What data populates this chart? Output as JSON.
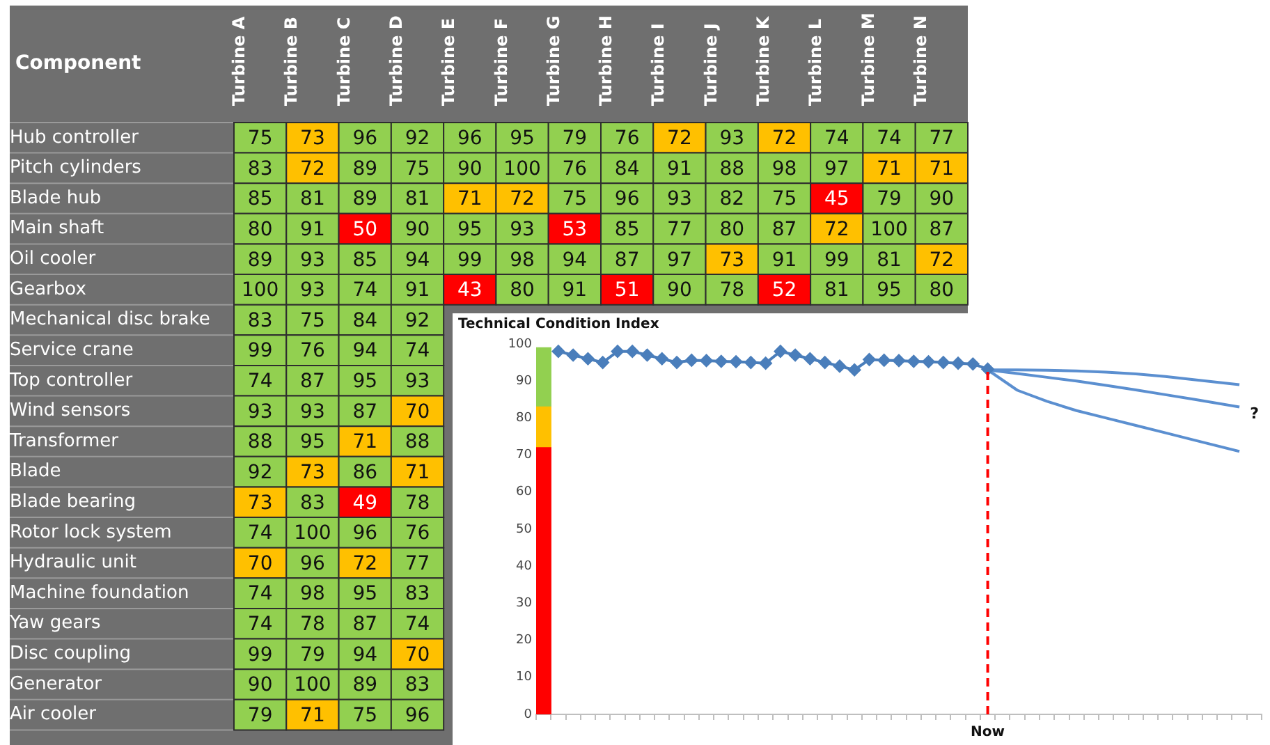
{
  "chart_data": [
    {
      "type": "heatmap",
      "ylabel": "Component",
      "data_labels": true,
      "categories": [
        "Turbine A",
        "Turbine B",
        "Turbine C",
        "Turbine D",
        "Turbine E",
        "Turbine F",
        "Turbine G",
        "Turbine H",
        "Turbine I",
        "Turbine J",
        "Turbine K",
        "Turbine L",
        "Turbine M",
        "Turbine N"
      ],
      "y_categories": [
        "Hub controller",
        "Pitch cylinders",
        "Blade hub",
        "Main shaft",
        "Oil cooler",
        "Gearbox",
        "Mechanical disc brake",
        "Service crane",
        "Top controller",
        "Wind sensors",
        "Transformer",
        "Blade",
        "Blade bearing",
        "Rotor lock system",
        "Hydraulic unit",
        "Machine foundation",
        "Yaw gears",
        "Disc coupling",
        "Generator",
        "Air cooler"
      ],
      "cells": [
        [
          75,
          73,
          96,
          92,
          96,
          95,
          79,
          76,
          72,
          93,
          72,
          74,
          74,
          77
        ],
        [
          83,
          72,
          89,
          75,
          90,
          100,
          76,
          84,
          91,
          88,
          98,
          97,
          71,
          71
        ],
        [
          85,
          81,
          89,
          81,
          71,
          72,
          75,
          96,
          93,
          82,
          75,
          45,
          79,
          90
        ],
        [
          80,
          91,
          50,
          90,
          95,
          93,
          53,
          85,
          77,
          80,
          87,
          72,
          100,
          87
        ],
        [
          89,
          93,
          85,
          94,
          99,
          98,
          94,
          87,
          97,
          73,
          91,
          99,
          81,
          72
        ],
        [
          100,
          93,
          74,
          91,
          43,
          80,
          91,
          51,
          90,
          78,
          52,
          81,
          95,
          80
        ],
        [
          83,
          75,
          84,
          92,
          null,
          null,
          null,
          null,
          null,
          null,
          null,
          null,
          null,
          null
        ],
        [
          99,
          76,
          94,
          74,
          null,
          null,
          null,
          null,
          null,
          null,
          null,
          null,
          null,
          null
        ],
        [
          74,
          87,
          95,
          93,
          null,
          null,
          null,
          null,
          null,
          null,
          null,
          null,
          null,
          null
        ],
        [
          93,
          93,
          87,
          70,
          null,
          null,
          null,
          null,
          null,
          null,
          null,
          null,
          null,
          null
        ],
        [
          88,
          95,
          71,
          88,
          null,
          null,
          null,
          null,
          null,
          null,
          null,
          null,
          null,
          null
        ],
        [
          92,
          73,
          86,
          71,
          null,
          null,
          null,
          null,
          null,
          null,
          null,
          null,
          null,
          null
        ],
        [
          73,
          83,
          49,
          78,
          null,
          null,
          null,
          null,
          null,
          null,
          null,
          null,
          null,
          null
        ],
        [
          74,
          100,
          96,
          76,
          null,
          null,
          null,
          null,
          null,
          null,
          null,
          null,
          null,
          null
        ],
        [
          70,
          96,
          72,
          77,
          null,
          null,
          null,
          null,
          null,
          null,
          null,
          null,
          null,
          null
        ],
        [
          74,
          98,
          95,
          83,
          null,
          null,
          null,
          null,
          null,
          null,
          null,
          null,
          null,
          null
        ],
        [
          74,
          78,
          87,
          74,
          null,
          null,
          null,
          null,
          null,
          null,
          null,
          null,
          null,
          null
        ],
        [
          99,
          79,
          94,
          70,
          null,
          null,
          null,
          null,
          null,
          null,
          null,
          null,
          null,
          null
        ],
        [
          90,
          100,
          89,
          83,
          null,
          null,
          null,
          null,
          null,
          null,
          null,
          null,
          null,
          null
        ],
        [
          79,
          71,
          75,
          96,
          null,
          null,
          null,
          null,
          null,
          null,
          null,
          null,
          null,
          null
        ]
      ],
      "colors": [
        [
          "#92d050",
          "#ffc000",
          "#92d050",
          "#92d050",
          "#92d050",
          "#92d050",
          "#92d050",
          "#92d050",
          "#ffc000",
          "#92d050",
          "#ffc000",
          "#92d050",
          "#92d050",
          "#92d050"
        ],
        [
          "#92d050",
          "#ffc000",
          "#92d050",
          "#92d050",
          "#92d050",
          "#92d050",
          "#92d050",
          "#92d050",
          "#92d050",
          "#92d050",
          "#92d050",
          "#92d050",
          "#ffc000",
          "#ffc000"
        ],
        [
          "#92d050",
          "#92d050",
          "#92d050",
          "#92d050",
          "#ffc000",
          "#ffc000",
          "#92d050",
          "#92d050",
          "#92d050",
          "#92d050",
          "#92d050",
          "#ff0000",
          "#92d050",
          "#92d050"
        ],
        [
          "#92d050",
          "#92d050",
          "#ff0000",
          "#92d050",
          "#92d050",
          "#92d050",
          "#ff0000",
          "#92d050",
          "#92d050",
          "#92d050",
          "#92d050",
          "#ffc000",
          "#92d050",
          "#92d050"
        ],
        [
          "#92d050",
          "#92d050",
          "#92d050",
          "#92d050",
          "#92d050",
          "#92d050",
          "#92d050",
          "#92d050",
          "#92d050",
          "#ffc000",
          "#92d050",
          "#92d050",
          "#92d050",
          "#ffc000"
        ],
        [
          "#92d050",
          "#92d050",
          "#92d050",
          "#92d050",
          "#ff0000",
          "#92d050",
          "#92d050",
          "#ff0000",
          "#92d050",
          "#92d050",
          "#ff0000",
          "#92d050",
          "#92d050",
          "#92d050"
        ],
        [
          "#92d050",
          "#92d050",
          "#92d050",
          "#92d050",
          null,
          null,
          null,
          null,
          null,
          null,
          null,
          null,
          null,
          null
        ],
        [
          "#92d050",
          "#92d050",
          "#92d050",
          "#92d050",
          null,
          null,
          null,
          null,
          null,
          null,
          null,
          null,
          null,
          null
        ],
        [
          "#92d050",
          "#92d050",
          "#92d050",
          "#92d050",
          null,
          null,
          null,
          null,
          null,
          null,
          null,
          null,
          null,
          null
        ],
        [
          "#92d050",
          "#92d050",
          "#92d050",
          "#ffc000",
          null,
          null,
          null,
          null,
          null,
          null,
          null,
          null,
          null,
          null
        ],
        [
          "#92d050",
          "#92d050",
          "#ffc000",
          "#92d050",
          null,
          null,
          null,
          null,
          null,
          null,
          null,
          null,
          null,
          null
        ],
        [
          "#92d050",
          "#ffc000",
          "#92d050",
          "#ffc000",
          null,
          null,
          null,
          null,
          null,
          null,
          null,
          null,
          null,
          null
        ],
        [
          "#ffc000",
          "#92d050",
          "#ff0000",
          "#92d050",
          null,
          null,
          null,
          null,
          null,
          null,
          null,
          null,
          null,
          null
        ],
        [
          "#92d050",
          "#92d050",
          "#92d050",
          "#92d050",
          null,
          null,
          null,
          null,
          null,
          null,
          null,
          null,
          null,
          null
        ],
        [
          "#ffc000",
          "#92d050",
          "#ffc000",
          "#92d050",
          null,
          null,
          null,
          null,
          null,
          null,
          null,
          null,
          null,
          null
        ],
        [
          "#92d050",
          "#92d050",
          "#92d050",
          "#92d050",
          null,
          null,
          null,
          null,
          null,
          null,
          null,
          null,
          null,
          null
        ],
        [
          "#92d050",
          "#92d050",
          "#92d050",
          "#92d050",
          null,
          null,
          null,
          null,
          null,
          null,
          null,
          null,
          null,
          null
        ],
        [
          "#92d050",
          "#92d050",
          "#92d050",
          "#ffc000",
          null,
          null,
          null,
          null,
          null,
          null,
          null,
          null,
          null,
          null
        ],
        [
          "#92d050",
          "#92d050",
          "#92d050",
          "#92d050",
          null,
          null,
          null,
          null,
          null,
          null,
          null,
          null,
          null,
          null
        ],
        [
          "#92d050",
          "#ffc000",
          "#92d050",
          "#92d050",
          null,
          null,
          null,
          null,
          null,
          null,
          null,
          null,
          null,
          null
        ]
      ]
    },
    {
      "type": "line",
      "title": "Technical Condition Index",
      "grid": false,
      "legend": false,
      "stacked": true,
      "categories": [
        null,
        null,
        null,
        null,
        null,
        null,
        null,
        null,
        null,
        null,
        null,
        null,
        null,
        null,
        null,
        null,
        null,
        null,
        null,
        null,
        null,
        null,
        null,
        null,
        null,
        null,
        null,
        null,
        null,
        null,
        "Now",
        null,
        null,
        null,
        null,
        null,
        null,
        null,
        null,
        null,
        null,
        null,
        null,
        null,
        null,
        null,
        null,
        null,
        null
      ],
      "ylim": [
        0,
        100
      ],
      "yticks": [
        0,
        10,
        20,
        30,
        40,
        50,
        60,
        70,
        80,
        90,
        100
      ],
      "series": [
        {
          "type": "bar",
          "color": "#ff0000",
          "values": [
            72,
            null,
            null,
            null,
            null,
            null,
            null,
            null,
            null,
            null,
            null,
            null,
            null,
            null,
            null,
            null,
            null,
            null,
            null,
            null,
            null,
            null,
            null,
            null,
            null,
            null,
            null,
            null,
            null,
            null,
            null,
            null,
            null,
            null,
            null,
            null,
            null,
            null,
            null,
            null,
            null,
            null,
            null,
            null,
            null,
            null,
            null,
            null,
            null
          ]
        },
        {
          "type": "bar",
          "color": "#ffc000",
          "values": [
            11,
            null,
            null,
            null,
            null,
            null,
            null,
            null,
            null,
            null,
            null,
            null,
            null,
            null,
            null,
            null,
            null,
            null,
            null,
            null,
            null,
            null,
            null,
            null,
            null,
            null,
            null,
            null,
            null,
            null,
            null,
            null,
            null,
            null,
            null,
            null,
            null,
            null,
            null,
            null,
            null,
            null,
            null,
            null,
            null,
            null,
            null,
            null,
            null
          ]
        },
        {
          "type": "bar",
          "color": "#92d050",
          "values": [
            16,
            null,
            null,
            null,
            null,
            null,
            null,
            null,
            null,
            null,
            null,
            null,
            null,
            null,
            null,
            null,
            null,
            null,
            null,
            null,
            null,
            null,
            null,
            null,
            null,
            null,
            null,
            null,
            null,
            null,
            null,
            null,
            null,
            null,
            null,
            null,
            null,
            null,
            null,
            null,
            null,
            null,
            null,
            null,
            null,
            null,
            null,
            null,
            null
          ]
        },
        {
          "marker": "diamond",
          "color": "#4a7ebb",
          "values": [
            null,
            98,
            97,
            96,
            95,
            98,
            98,
            97,
            96,
            95,
            95.6,
            95.5,
            95.3,
            95.2,
            95,
            94.8,
            98,
            97,
            96,
            95,
            94,
            93,
            95.8,
            95.6,
            95.5,
            95.3,
            95.2,
            95,
            94.8,
            94.6,
            93.2,
            null,
            null,
            null,
            null,
            null,
            null,
            null,
            null,
            null,
            null,
            null,
            null,
            null,
            null,
            null,
            null,
            null,
            null
          ]
        },
        {
          "marker": "none",
          "color": "#5b8fd0",
          "values": [
            null,
            null,
            null,
            null,
            null,
            null,
            null,
            null,
            null,
            null,
            null,
            null,
            null,
            null,
            null,
            null,
            null,
            null,
            null,
            null,
            null,
            null,
            null,
            null,
            null,
            null,
            null,
            null,
            null,
            null,
            93,
            null,
            93,
            null,
            92.9,
            null,
            92.7,
            null,
            92.4,
            null,
            91.9,
            null,
            91.2,
            null,
            90.3,
            null,
            null,
            89,
            null
          ]
        },
        {
          "marker": "none",
          "color": "#5b8fd0",
          "values": [
            null,
            null,
            null,
            null,
            null,
            null,
            null,
            null,
            null,
            null,
            null,
            null,
            null,
            null,
            null,
            null,
            null,
            null,
            null,
            null,
            null,
            null,
            null,
            null,
            null,
            null,
            null,
            null,
            null,
            null,
            93,
            null,
            92,
            null,
            91,
            null,
            90,
            null,
            88.8,
            null,
            87.6,
            null,
            86.3,
            null,
            85,
            null,
            null,
            83,
            null
          ]
        },
        {
          "marker": "none",
          "color": "#5b8fd0",
          "values": [
            null,
            null,
            null,
            null,
            null,
            null,
            null,
            null,
            null,
            null,
            null,
            null,
            null,
            null,
            null,
            null,
            null,
            null,
            null,
            null,
            null,
            null,
            null,
            null,
            null,
            null,
            null,
            null,
            null,
            null,
            93,
            null,
            87.5,
            null,
            84.5,
            null,
            82,
            null,
            80,
            null,
            78,
            null,
            76,
            null,
            74,
            null,
            null,
            71,
            null
          ]
        }
      ],
      "ref_lines": [
        {
          "axis": "x",
          "value": "Now",
          "color": "#ff0000",
          "line_style": "dashed"
        }
      ],
      "annotations": [
        "?"
      ]
    }
  ]
}
